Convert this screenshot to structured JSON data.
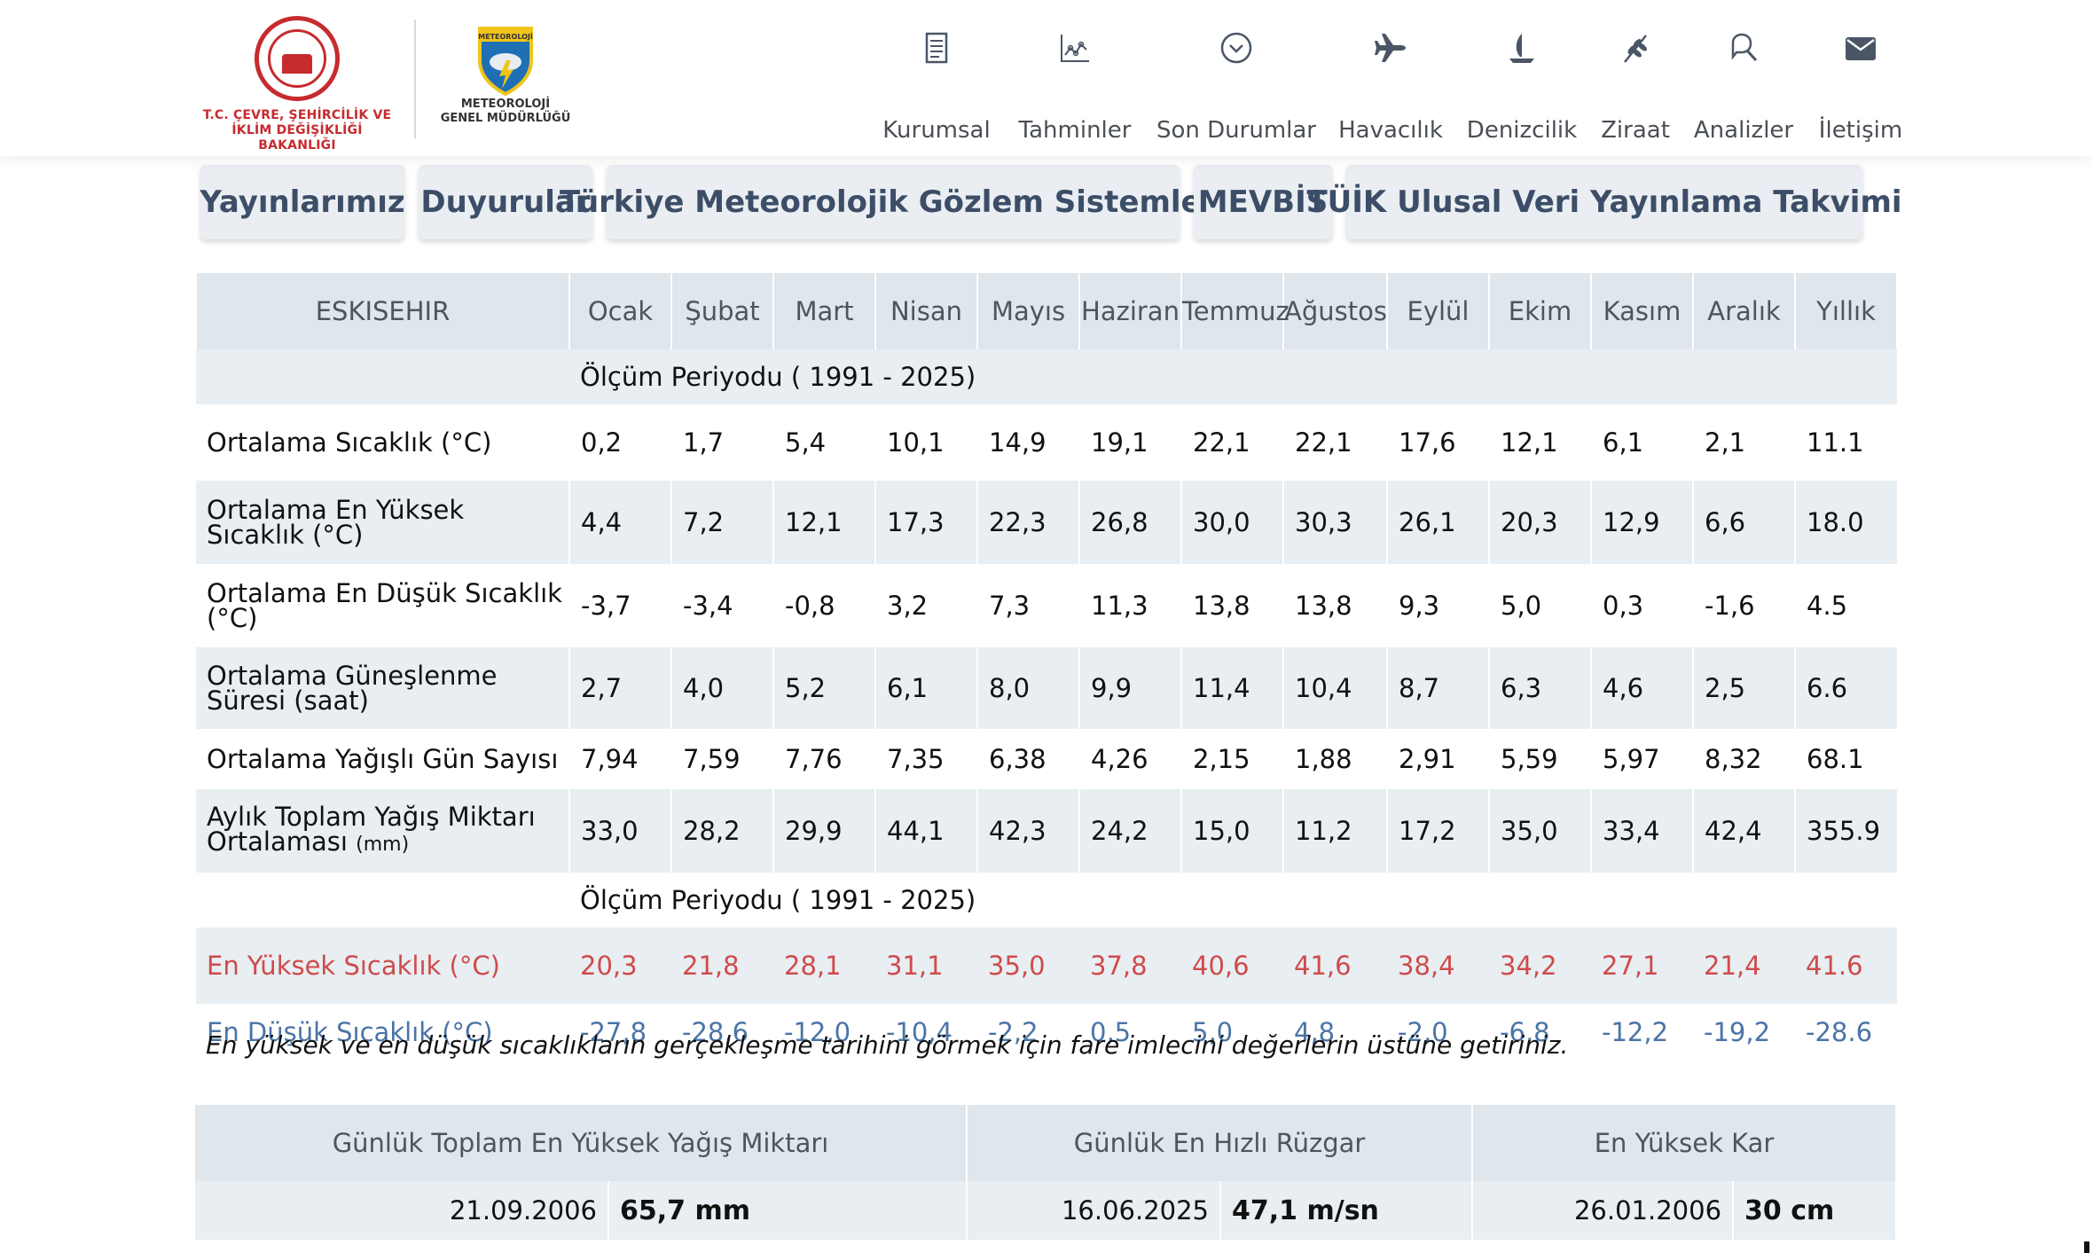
{
  "header": {
    "ministry_logo_text": "T.C. ÇEVRE, ŞEHİRCİLİK VE İKLİM DEĞİŞİKLİĞİ BAKANLIĞI",
    "ministry_line1": "T.C. ÇEVRE, ŞEHİRCİLİK VE",
    "ministry_line2": "İKLİM DEĞİŞİKLİĞİ BAKANLIĞI",
    "mgm_badge": "METEOROLOJİ",
    "mgm_line1": "METEOROLOJİ",
    "mgm_line2": "GENEL MÜDÜRLÜĞÜ",
    "nav": [
      {
        "label": "Kurumsal",
        "icon": "document-icon"
      },
      {
        "label": "Tahminler",
        "icon": "chart-icon"
      },
      {
        "label": "Son Durumlar",
        "icon": "chevron-circle-icon"
      },
      {
        "label": "Havacılık",
        "icon": "airplane-icon"
      },
      {
        "label": "Denizcilik",
        "icon": "sailboat-icon"
      },
      {
        "label": "Ziraat",
        "icon": "wheat-icon"
      },
      {
        "label": "Analizler",
        "icon": "magnifier-icon"
      },
      {
        "label": "İletişim",
        "icon": "envelope-icon"
      }
    ]
  },
  "subnav": [
    "Yayınlarımız",
    "Duyurular",
    "Türkiye Meteorolojik Gözlem Sistemleri",
    "MEVBİS",
    "TÜİK Ulusal Veri Yayınlama Takvimi"
  ],
  "table": {
    "station": "ESKISEHIR",
    "months": [
      "Ocak",
      "Şubat",
      "Mart",
      "Nisan",
      "Mayıs",
      "Haziran",
      "Temmuz",
      "Ağustos",
      "Eylül",
      "Ekim",
      "Kasım",
      "Aralık",
      "Yıllık"
    ],
    "period1": "Ölçüm Periyodu ( 1991 - 2025)",
    "rows": [
      {
        "label": "Ortalama Sıcaklık (°C)",
        "values": [
          "0,2",
          "1,7",
          "5,4",
          "10,1",
          "14,9",
          "19,1",
          "22,1",
          "22,1",
          "17,6",
          "12,1",
          "6,1",
          "2,1",
          "11.1"
        ]
      },
      {
        "label": "Ortalama En Yüksek Sıcaklık (°C)",
        "values": [
          "4,4",
          "7,2",
          "12,1",
          "17,3",
          "22,3",
          "26,8",
          "30,0",
          "30,3",
          "26,1",
          "20,3",
          "12,9",
          "6,6",
          "18.0"
        ]
      },
      {
        "label": "Ortalama En Düşük Sıcaklık (°C)",
        "values": [
          "-3,7",
          "-3,4",
          "-0,8",
          "3,2",
          "7,3",
          "11,3",
          "13,8",
          "13,8",
          "9,3",
          "5,0",
          "0,3",
          "-1,6",
          "4.5"
        ]
      },
      {
        "label": "Ortalama Güneşlenme Süresi (saat)",
        "values": [
          "2,7",
          "4,0",
          "5,2",
          "6,1",
          "8,0",
          "9,9",
          "11,4",
          "10,4",
          "8,7",
          "6,3",
          "4,6",
          "2,5",
          "6.6"
        ]
      },
      {
        "label": "Ortalama Yağışlı Gün Sayısı",
        "values": [
          "7,94",
          "7,59",
          "7,76",
          "7,35",
          "6,38",
          "4,26",
          "2,15",
          "1,88",
          "2,91",
          "5,59",
          "5,97",
          "8,32",
          "68.1"
        ]
      },
      {
        "label": "Aylık Toplam Yağış Miktarı Ortalaması",
        "label_unit": "(mm)",
        "values": [
          "33,0",
          "28,2",
          "29,9",
          "44,1",
          "42,3",
          "24,2",
          "15,0",
          "11,2",
          "17,2",
          "35,0",
          "33,4",
          "42,4",
          "355.9"
        ]
      }
    ],
    "period2": "Ölçüm Periyodu ( 1991 - 2025)",
    "extremes": [
      {
        "label": "En Yüksek Sıcaklık (°C)",
        "values": [
          "20,3",
          "21,8",
          "28,1",
          "31,1",
          "35,0",
          "37,8",
          "40,6",
          "41,6",
          "38,4",
          "34,2",
          "27,1",
          "21,4",
          "41.6"
        ]
      },
      {
        "label": "En Düşük Sıcaklık (°C)",
        "values": [
          "-27,8",
          "-28,6",
          "-12,0",
          "-10,4",
          "-2,2",
          "0,5",
          "5,0",
          "4,8",
          "-2,0",
          "-6,8",
          "-12,2",
          "-19,2",
          "-28.6"
        ]
      }
    ]
  },
  "note": "En yüksek ve en düşük sıcaklıkların gerçekleşme tarihini görmek için fare imlecini değerlerin üstüne getiriniz.",
  "records": {
    "headers": [
      "Günlük Toplam En Yüksek Yağış Miktarı",
      "Günlük En Hızlı Rüzgar",
      "En Yüksek Kar"
    ],
    "items": [
      {
        "date": "21.09.2006",
        "value": "65,7 mm"
      },
      {
        "date": "16.06.2025",
        "value": "47,1 m/sn"
      },
      {
        "date": "26.01.2006",
        "value": "30 cm"
      }
    ]
  },
  "colors": {
    "hot": "#cf4b4b",
    "cold": "#4a74a6",
    "header_bg": "#dfe6ec",
    "row_alt": "#e8eef2",
    "ministry_red": "#c62b2f"
  }
}
